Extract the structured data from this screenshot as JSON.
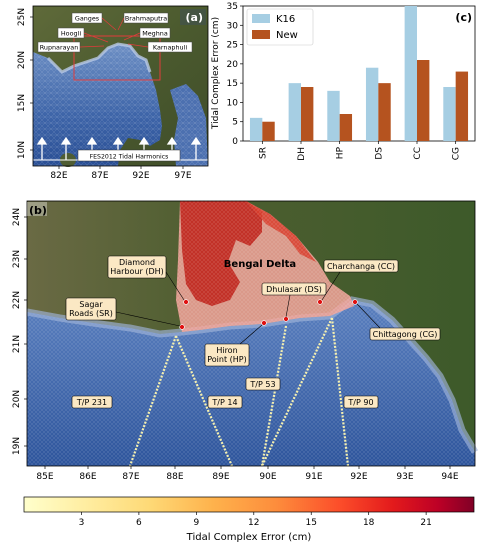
{
  "panel_a": {
    "label": "(a)",
    "x_ticks": [
      "82E",
      "87E",
      "92E",
      "97E"
    ],
    "y_ticks": [
      "25N",
      "20N",
      "15N",
      "10N"
    ],
    "rivers": [
      "Ganges",
      "Brahmaputra",
      "Hoogli",
      "Meghna",
      "Rupnarayan",
      "Karnaphuli"
    ],
    "boundary_label": "FES2012 Tidal Harmonics"
  },
  "panel_b": {
    "label": "(b)",
    "x_ticks": [
      "85E",
      "86E",
      "87E",
      "88E",
      "89E",
      "90E",
      "91E",
      "92E",
      "93E",
      "94E"
    ],
    "y_ticks": [
      "24N",
      "23N",
      "22N",
      "21N",
      "20N",
      "19N"
    ],
    "region_label": "Bengal Delta",
    "stations": [
      {
        "code": "DH",
        "label": "Diamond\nHarbour (DH)"
      },
      {
        "code": "SR",
        "label": "Sagar\nRoads (SR)"
      },
      {
        "code": "HP",
        "label": "Hiron\nPoint (HP)"
      },
      {
        "code": "DS",
        "label": "Dhulasar (DS)"
      },
      {
        "code": "CC",
        "label": "Charchanga (CC)"
      },
      {
        "code": "CG",
        "label": "Chittagong (CG)"
      }
    ],
    "tracks": [
      "T/P 231",
      "T/P 14",
      "T/P 53",
      "T/P 90"
    ]
  },
  "colorbar": {
    "label": "Tidal Complex Error (cm)",
    "ticks": [
      "3",
      "6",
      "9",
      "12",
      "15",
      "18",
      "21"
    ],
    "colors": [
      "#ffffcc",
      "#ffeda0",
      "#fed976",
      "#feb24c",
      "#fd8d3c",
      "#fc4e2a",
      "#e31a1c",
      "#bd0026",
      "#800026"
    ]
  },
  "chart_data": {
    "type": "bar",
    "label": "(c)",
    "categories": [
      "SR",
      "DH",
      "HP",
      "DS",
      "CC",
      "CG"
    ],
    "series": [
      {
        "name": "K16",
        "values": [
          6,
          15,
          13,
          19,
          35,
          14
        ],
        "color": "#a6cee3"
      },
      {
        "name": "New",
        "values": [
          5,
          14,
          7,
          15,
          21,
          18
        ],
        "color": "#b5531f"
      }
    ],
    "ylabel": "Tidal Complex Error (cm)",
    "ylim": [
      0,
      35
    ],
    "yticks": [
      "0",
      "5",
      "10",
      "15",
      "20",
      "25",
      "30",
      "35"
    ],
    "legend": "top-left"
  }
}
